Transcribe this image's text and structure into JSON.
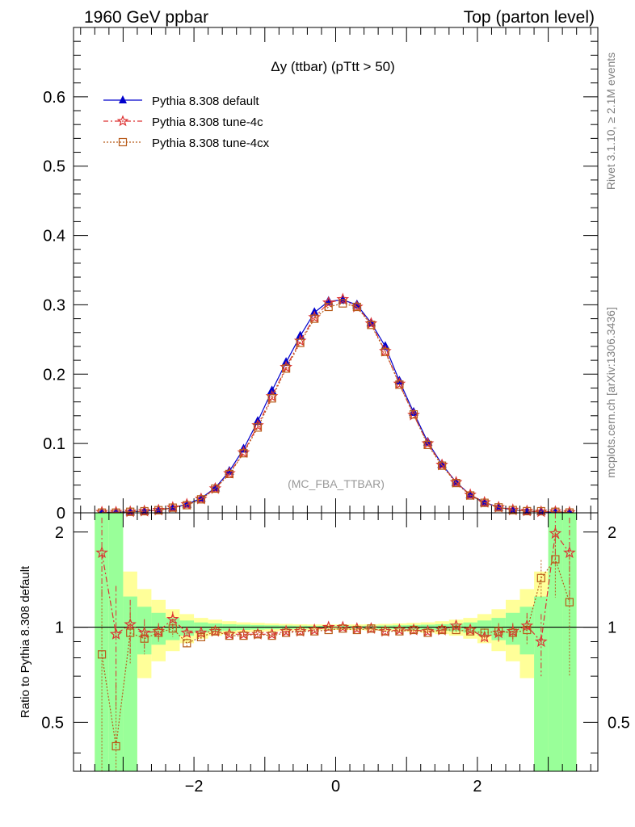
{
  "header": {
    "left": "1960 GeV ppbar",
    "right": "Top (parton level)"
  },
  "side_labels": {
    "rivet": "Rivet 3.1.10, ≥ 2.1M events",
    "mcplots": "mcplots.cern.ch [arXiv:1306.3436]"
  },
  "chart_data": [
    {
      "type": "line",
      "title": "Δy (ttbar) (pTtt > 50)",
      "watermark": "(MC_FBA_TTBAR)",
      "xlim": [
        -3.7,
        3.7
      ],
      "ylim": [
        0,
        0.7
      ],
      "yticks": [
        0,
        0.1,
        0.2,
        0.3,
        0.4,
        0.5,
        0.6
      ],
      "ytick_labels": [
        "0",
        "0.1",
        "0.2",
        "0.3",
        "0.4",
        "0.5",
        "0.6"
      ],
      "legend_placement": "top-left",
      "x": [
        -3.3,
        -3.1,
        -2.9,
        -2.7,
        -2.5,
        -2.3,
        -2.1,
        -1.9,
        -1.7,
        -1.5,
        -1.3,
        -1.1,
        -0.9,
        -0.7,
        -0.5,
        -0.3,
        -0.1,
        0.1,
        0.3,
        0.5,
        0.7,
        0.9,
        1.1,
        1.3,
        1.5,
        1.7,
        1.9,
        2.1,
        2.3,
        2.5,
        2.7,
        2.9,
        3.1,
        3.3
      ],
      "series": [
        {
          "name": "Pythia 8.308 default",
          "color": "#0000cc",
          "marker": "triangle",
          "values": [
            0.0005,
            0.0009,
            0.0015,
            0.0025,
            0.004,
            0.0072,
            0.0125,
            0.021,
            0.036,
            0.06,
            0.092,
            0.132,
            0.176,
            0.217,
            0.255,
            0.289,
            0.305,
            0.307,
            0.3,
            0.274,
            0.24,
            0.19,
            0.145,
            0.102,
            0.07,
            0.044,
            0.026,
            0.015,
            0.008,
            0.0042,
            0.0025,
            0.0016,
            0.0009,
            0.0004
          ]
        },
        {
          "name": "Pythia 8.308 tune-4c",
          "color": "#dd3333",
          "marker": "star",
          "values": [
            0.0009,
            0.0009,
            0.0015,
            0.0024,
            0.0039,
            0.0076,
            0.0122,
            0.02,
            0.035,
            0.057,
            0.087,
            0.126,
            0.168,
            0.21,
            0.248,
            0.282,
            0.303,
            0.308,
            0.297,
            0.273,
            0.233,
            0.186,
            0.141,
            0.1,
            0.069,
            0.044,
            0.026,
            0.015,
            0.008,
            0.0042,
            0.0026,
            0.0015,
            0.0018,
            0.0007
          ]
        },
        {
          "name": "Pythia 8.308 tune-4cx",
          "color": "#b85c1a",
          "marker": "square",
          "values": [
            0.0004,
            0.0004,
            0.0015,
            0.0023,
            0.0038,
            0.0075,
            0.0111,
            0.0195,
            0.035,
            0.056,
            0.086,
            0.123,
            0.165,
            0.208,
            0.245,
            0.28,
            0.297,
            0.302,
            0.297,
            0.271,
            0.232,
            0.185,
            0.142,
            0.098,
            0.068,
            0.043,
            0.025,
            0.0145,
            0.0078,
            0.004,
            0.0025,
            0.0023,
            0.0015,
            0.0005
          ]
        }
      ]
    },
    {
      "type": "line",
      "ylabel": "Ratio to Pythia 8.308 default",
      "xlim": [
        -3.7,
        3.7
      ],
      "ylim": [
        0.35,
        2.3
      ],
      "xticks": [
        -2,
        0,
        2
      ],
      "xtick_labels": [
        "−2",
        "0",
        "2"
      ],
      "yticks": [
        0.5,
        1,
        2
      ],
      "ytick_labels": [
        "0.5",
        "1",
        "2"
      ],
      "reference_line": 1,
      "x": [
        -3.3,
        -3.1,
        -2.9,
        -2.7,
        -2.5,
        -2.3,
        -2.1,
        -1.9,
        -1.7,
        -1.5,
        -1.3,
        -1.1,
        -0.9,
        -0.7,
        -0.5,
        -0.3,
        -0.1,
        0.1,
        0.3,
        0.5,
        0.7,
        0.9,
        1.1,
        1.3,
        1.5,
        1.7,
        1.9,
        2.1,
        2.3,
        2.5,
        2.7,
        2.9,
        3.1,
        3.3
      ],
      "bands": {
        "green": {
          "color": "#99ff99",
          "lower": [
            0.35,
            0.35,
            0.35,
            0.82,
            0.88,
            0.91,
            0.94,
            0.96,
            0.97,
            0.975,
            0.98,
            0.983,
            0.985,
            0.987,
            0.988,
            0.99,
            0.99,
            0.99,
            0.99,
            0.988,
            0.987,
            0.985,
            0.983,
            0.98,
            0.975,
            0.97,
            0.96,
            0.94,
            0.91,
            0.88,
            0.82,
            0.35,
            0.35,
            0.35
          ],
          "upper": [
            2.3,
            2.3,
            1.25,
            1.16,
            1.11,
            1.07,
            1.05,
            1.035,
            1.028,
            1.022,
            1.018,
            1.016,
            1.014,
            1.012,
            1.011,
            1.01,
            1.01,
            1.01,
            1.01,
            1.011,
            1.012,
            1.014,
            1.016,
            1.018,
            1.022,
            1.028,
            1.035,
            1.05,
            1.07,
            1.11,
            1.16,
            1.25,
            2.3,
            2.3
          ]
        },
        "yellow": {
          "color": "#ffff99",
          "lower": [
            0.35,
            0.35,
            0.35,
            0.69,
            0.78,
            0.84,
            0.89,
            0.92,
            0.94,
            0.95,
            0.96,
            0.966,
            0.97,
            0.974,
            0.976,
            0.979,
            0.98,
            0.98,
            0.979,
            0.976,
            0.974,
            0.97,
            0.966,
            0.96,
            0.95,
            0.94,
            0.92,
            0.89,
            0.84,
            0.78,
            0.69,
            0.35,
            0.35,
            0.35
          ],
          "upper": [
            2.3,
            2.3,
            1.5,
            1.32,
            1.22,
            1.14,
            1.1,
            1.07,
            1.056,
            1.044,
            1.036,
            1.032,
            1.028,
            1.024,
            1.022,
            1.02,
            1.02,
            1.02,
            1.02,
            1.022,
            1.024,
            1.028,
            1.032,
            1.036,
            1.044,
            1.056,
            1.07,
            1.1,
            1.14,
            1.22,
            1.32,
            1.5,
            2.3,
            2.3
          ]
        }
      },
      "series": [
        {
          "name": "Pythia 8.308 tune-4c",
          "color": "#dd3333",
          "marker": "star",
          "values": [
            1.72,
            0.95,
            1.02,
            0.96,
            0.97,
            1.06,
            0.96,
            0.96,
            0.97,
            0.95,
            0.95,
            0.95,
            0.95,
            0.97,
            0.97,
            0.98,
            1.0,
            1.0,
            0.99,
            0.99,
            0.97,
            0.98,
            0.98,
            0.97,
            0.98,
            1.01,
            0.98,
            0.93,
            0.96,
            0.97,
            1.01,
            0.9,
            1.98,
            1.72
          ],
          "err": [
            0.5,
            0.4,
            0.2,
            0.1,
            0.06,
            0.06,
            0.03,
            0.02,
            0.015,
            0.01,
            0.01,
            0.008,
            0.008,
            0.006,
            0.006,
            0.005,
            0.005,
            0.005,
            0.005,
            0.006,
            0.006,
            0.008,
            0.008,
            0.01,
            0.01,
            0.015,
            0.02,
            0.03,
            0.06,
            0.06,
            0.1,
            0.2,
            0.4,
            0.5
          ]
        },
        {
          "name": "Pythia 8.308 tune-4cx",
          "color": "#b85c1a",
          "marker": "square",
          "values": [
            0.82,
            0.42,
            0.96,
            0.92,
            0.96,
            0.99,
            0.89,
            0.93,
            0.97,
            0.94,
            0.94,
            0.95,
            0.94,
            0.96,
            0.97,
            0.97,
            0.98,
            0.99,
            0.98,
            0.99,
            0.97,
            0.97,
            0.98,
            0.96,
            0.98,
            0.98,
            0.97,
            0.96,
            0.97,
            0.96,
            0.98,
            1.43,
            1.64,
            1.2
          ],
          "err": [
            0.5,
            0.25,
            0.2,
            0.1,
            0.06,
            0.06,
            0.03,
            0.02,
            0.015,
            0.01,
            0.01,
            0.008,
            0.008,
            0.006,
            0.006,
            0.005,
            0.005,
            0.005,
            0.005,
            0.006,
            0.006,
            0.008,
            0.008,
            0.01,
            0.01,
            0.015,
            0.02,
            0.03,
            0.06,
            0.06,
            0.1,
            0.2,
            0.4,
            0.5
          ]
        }
      ]
    }
  ]
}
